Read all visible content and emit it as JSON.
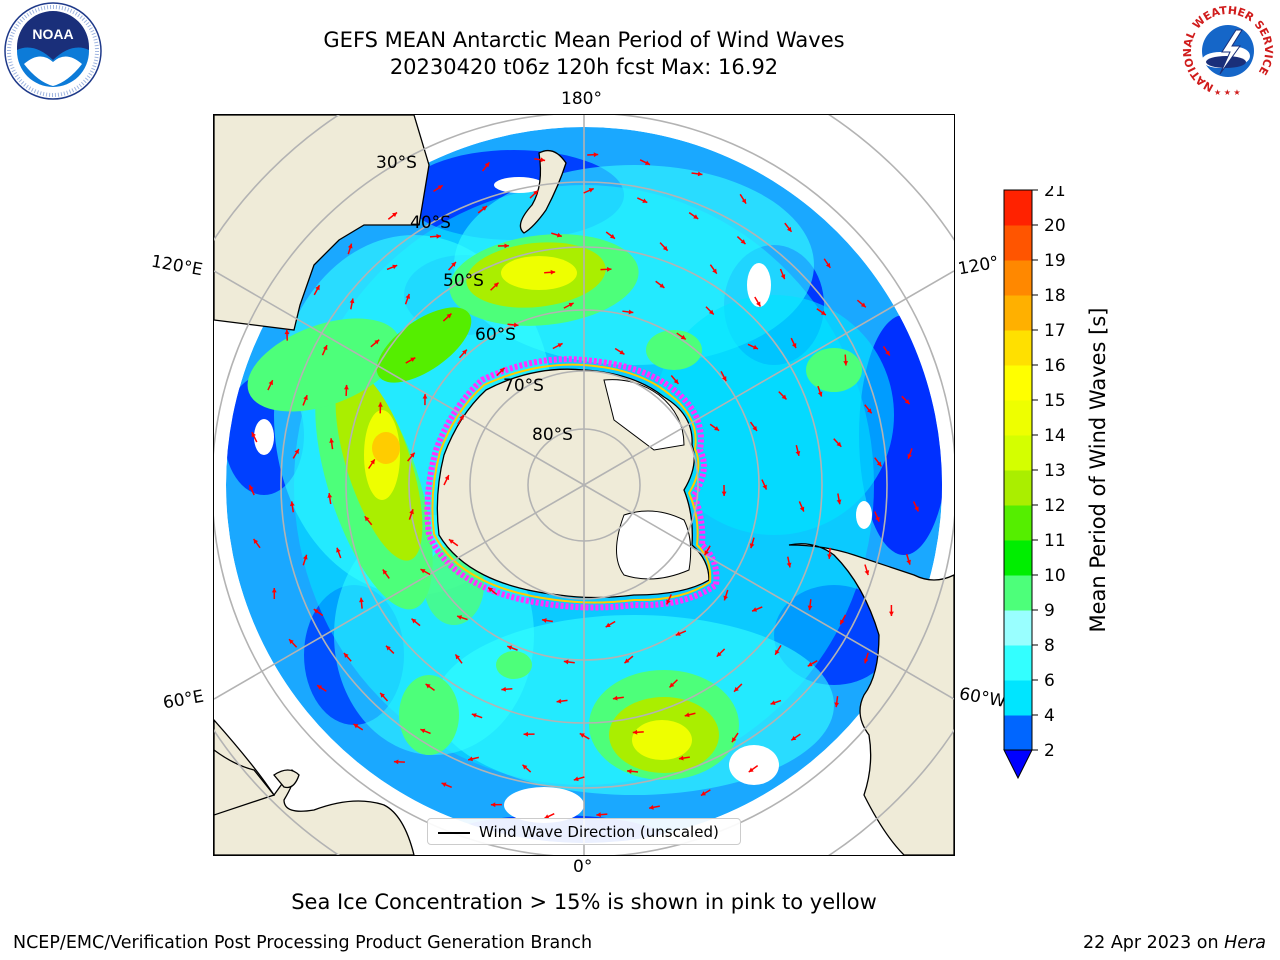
{
  "title": {
    "line1": "GEFS MEAN Antarctic Mean Period of Wind Waves",
    "line2": "20230420 t06z 120h fcst   Max: 16.92"
  },
  "logos": {
    "left": "noaa-logo",
    "right": "nws-logo",
    "nws_ring_text": "NATIONAL WEATHER SERVICE"
  },
  "map": {
    "projection": "south-polar-stereographic",
    "longitude_labels": {
      "top": "180°",
      "upper_left": "120°E",
      "upper_right": "120°",
      "lower_left": "60°E",
      "lower_right": "60°W",
      "bottom": "0°"
    },
    "latitude_labels": [
      "30°S",
      "40°S",
      "50°S",
      "60°S",
      "70°S",
      "80°S"
    ],
    "colors": {
      "land": "#efebd8",
      "graticule": "#b3b3b3",
      "arrows": "#ff0000",
      "sea_ice_edge": [
        "#ff33ff",
        "#ffcc00"
      ]
    }
  },
  "colorbar": {
    "label": "Mean Period of Wind Waves [s]",
    "ticks": [
      "2",
      "4",
      "6",
      "8",
      "9",
      "10",
      "11",
      "12",
      "13",
      "14",
      "15",
      "16",
      "17",
      "18",
      "19",
      "20",
      "21"
    ],
    "colors": [
      "#0066ff",
      "#00e5ff",
      "#33ffff",
      "#99ffff",
      "#4dff7a",
      "#00ee00",
      "#55ee00",
      "#aaee00",
      "#d4ff00",
      "#eeff00",
      "#ffff00",
      "#ffe000",
      "#ffb000",
      "#ff8800",
      "#ff5500",
      "#ff2200"
    ],
    "under_color": "#0000ff"
  },
  "legend": {
    "label": "Wind Wave Direction (unscaled)"
  },
  "caption": "Sea Ice Concentration > 15% is shown in pink to yellow",
  "footer": {
    "left": "NCEP/EMC/Verification Post Processing Product Generation Branch",
    "right_prefix": "22 Apr 2023 on ",
    "right_host": "Hera"
  }
}
